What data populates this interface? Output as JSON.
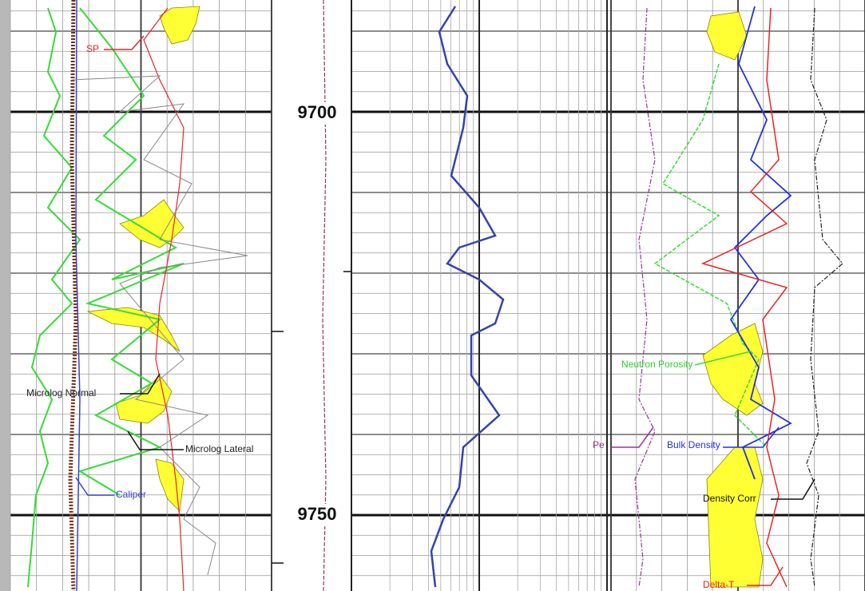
{
  "depth_labels": [
    "9700",
    "9750"
  ],
  "curve_labels": {
    "sp": "SP",
    "microlog_normal": "Microlog Normal",
    "microlog_lateral": "Microlog Lateral",
    "caliper": "Caliper",
    "pe": "Pe",
    "bulk_density": "Bulk Density",
    "neutron_porosity": "Neutron Porosity",
    "density_corr": "Density Corr",
    "delta_t": "Delta-T"
  }
}
